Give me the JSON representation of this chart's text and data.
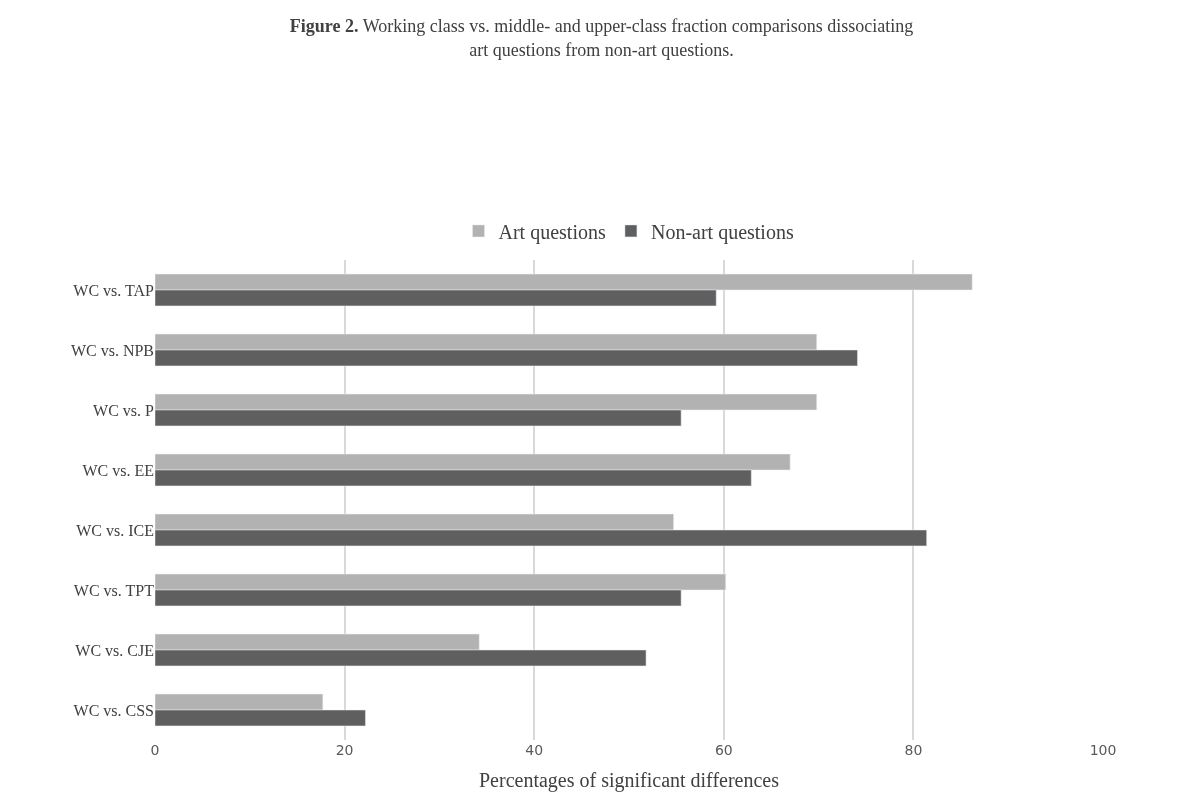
{
  "chart_data": {
    "type": "bar",
    "orientation": "horizontal",
    "title": "Figure 2.",
    "subtitle": "Working class vs. middle- and upper-class fraction comparisons dissociating art questions from non-art questions.",
    "categories": [
      "WC vs. TAP",
      "WC vs. NPB",
      "WC vs. P",
      "WC vs. EE",
      "WC vs. ICE",
      "WC vs. TPT",
      "WC vs. CJE",
      "WC vs. CSS"
    ],
    "series": [
      {
        "name": "Art questions",
        "color": "#b2b2b2",
        "values": [
          86.2,
          69.8,
          69.8,
          67.0,
          54.7,
          60.2,
          34.2,
          17.7
        ]
      },
      {
        "name": "Non-art questions",
        "color": "#5f5f5f",
        "values": [
          59.2,
          74.1,
          55.5,
          62.9,
          81.4,
          55.5,
          51.8,
          22.2
        ]
      }
    ],
    "xlabel": "Percentages of significant differences",
    "xlim": [
      0,
      100
    ],
    "xticks": [
      0,
      20,
      40,
      60,
      80,
      100
    ],
    "grid": "x",
    "legend": "top"
  }
}
